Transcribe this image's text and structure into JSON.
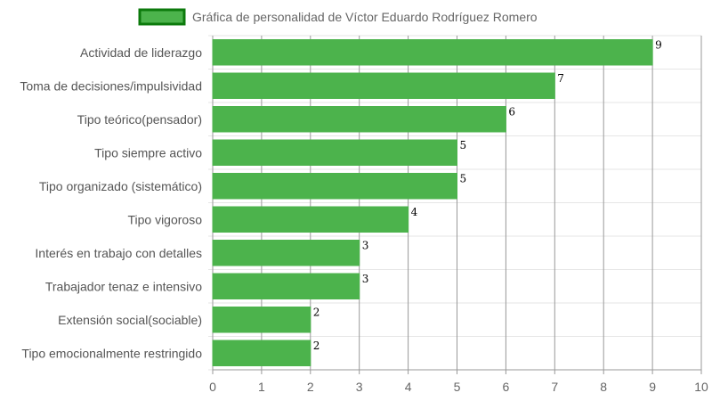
{
  "colors": {
    "bar_fill": "#4cb34c",
    "bar_border": "#4cb34c",
    "legend_fill": "#4cb34c",
    "legend_border": "#0c7a0c",
    "grid": "#e6e6e6",
    "grid_major": "#999999",
    "axis": "#999999"
  },
  "chart_data": {
    "type": "bar",
    "orientation": "horizontal",
    "legend_position": "top",
    "grid": true,
    "xlim": [
      0,
      10
    ],
    "x_ticks": [
      "0",
      "1",
      "2",
      "3",
      "4",
      "5",
      "6",
      "7",
      "8",
      "9",
      "10"
    ],
    "categories": [
      "Actividad de liderazgo",
      "Toma de decisiones/impulsividad",
      "Tipo teórico(pensador)",
      "Tipo siempre activo",
      "Tipo organizado (sistemático)",
      "Tipo vigoroso",
      "Interés en trabajo con detalles",
      "Trabajador tenaz e intensivo",
      "Extensión social(sociable)",
      "Tipo emocionalmente restringido"
    ],
    "series": [
      {
        "name": "Gráfica de personalidad de Víctor Eduardo Rodríguez Romero",
        "values": [
          9,
          7,
          6,
          5,
          5,
          4,
          3,
          3,
          2,
          2
        ]
      }
    ]
  }
}
